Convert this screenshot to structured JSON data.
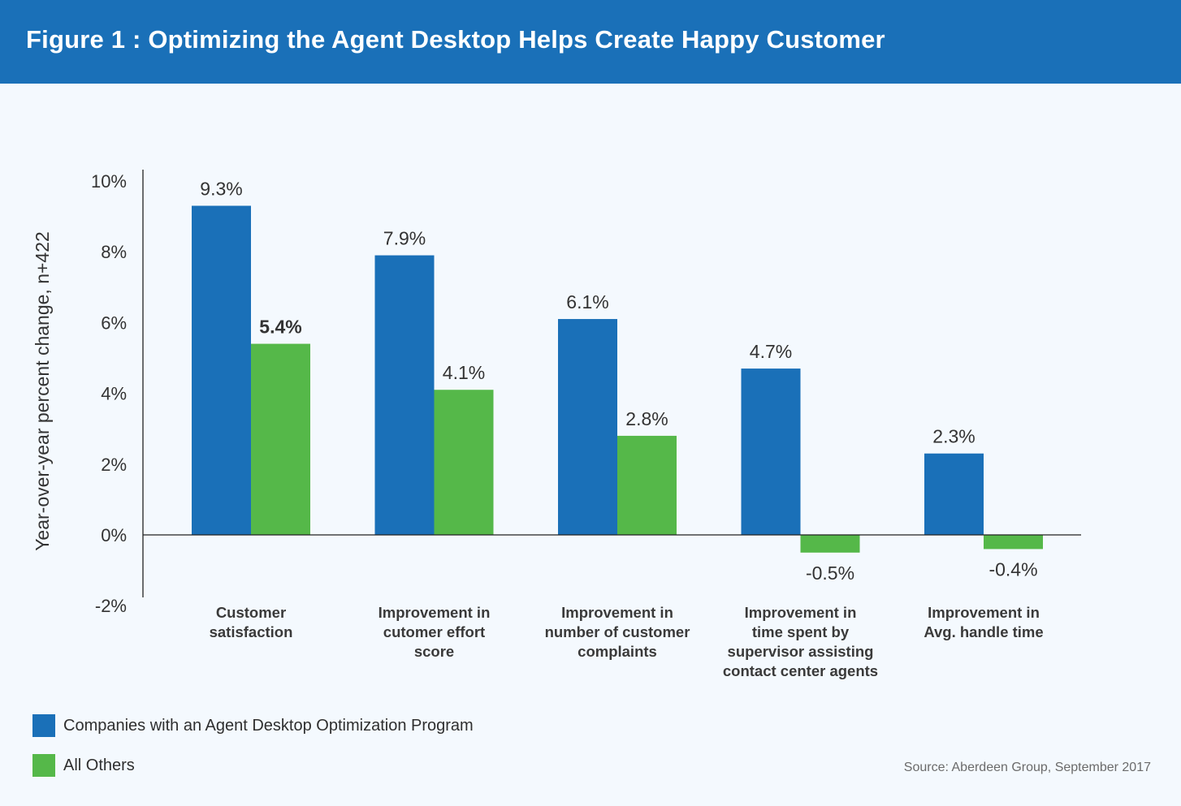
{
  "figure_title": "Figure 1 : Optimizing the Agent Desktop Helps Create Happy Customer",
  "source": "Source: Aberdeen Group, September 2017",
  "colors": {
    "header": "#1a70b8",
    "series1": "#1a70b8",
    "series2": "#55b849",
    "background": "#f4f9fe"
  },
  "chart_data": {
    "type": "bar",
    "title": "Figure 1 : Optimizing the Agent Desktop Helps Create Happy Customer",
    "xlabel": "",
    "ylabel": "Year-over-year percent change, n+422",
    "ylim": [
      -2,
      10
    ],
    "yticks": [
      10,
      8,
      6,
      4,
      2,
      0,
      -2
    ],
    "ytick_labels": [
      "10%",
      "8%",
      "6%",
      "4%",
      "2%",
      "0%",
      "-2%"
    ],
    "categories": [
      [
        "Customer",
        "satisfaction"
      ],
      [
        "Improvement in",
        "cutomer effort",
        "score"
      ],
      [
        "Improvement in",
        "number of customer",
        "complaints"
      ],
      [
        "Improvement in",
        "time spent by",
        "supervisor assisting",
        "contact center agents"
      ],
      [
        "Improvement in",
        "Avg. handle time"
      ]
    ],
    "series": [
      {
        "name": "Companies with an Agent Desktop Optimization Program",
        "color": "#1a70b8",
        "values": [
          9.3,
          7.9,
          6.1,
          4.7,
          2.3
        ],
        "labels": [
          "9.3%",
          "7.9%",
          "6.1%",
          "4.7%",
          "2.3%"
        ]
      },
      {
        "name": "All Others",
        "color": "#55b849",
        "values": [
          5.4,
          4.1,
          2.8,
          -0.5,
          -0.4
        ],
        "labels": [
          "5.4%",
          "4.1%",
          "2.8%",
          "-0.5%",
          "-0.4%"
        ]
      }
    ],
    "legend_position": "bottom-left",
    "grid": false
  }
}
